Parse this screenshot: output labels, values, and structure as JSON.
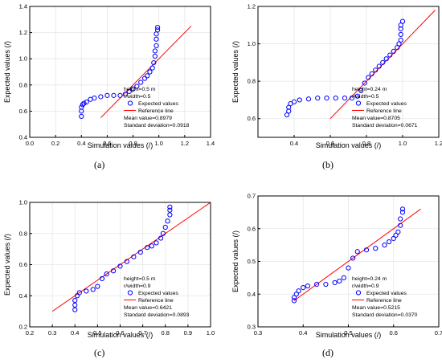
{
  "colors": {
    "points": "#0000ff",
    "reference": "#ff0000",
    "axis": "#000000",
    "grid": "#e6e6e6"
  },
  "captions": [
    "(a)",
    "(b)",
    "(c)",
    "(d)"
  ],
  "chart_data": [
    {
      "type": "scatter",
      "xlabel": "Simulation values (/)",
      "ylabel": "Expected values (/)",
      "xlim": [
        0.0,
        1.4
      ],
      "ylim": [
        0.4,
        1.4
      ],
      "xticks": [
        "0.0",
        "0.2",
        "0.4",
        "0.6",
        "0.8",
        "1.0",
        "1.2",
        "1.4"
      ],
      "yticks": [
        "0.4",
        "0.6",
        "0.8",
        "1.0",
        "1.2",
        "1.4"
      ],
      "grid": true,
      "legend_position": "bottom-right",
      "annotations": [
        "height=0.5 m",
        "r/width=0.5",
        "Mean value=0.8979",
        "Standard deviation=0.0918"
      ],
      "series": [
        {
          "name": "Expected values",
          "marker": "open-circle",
          "points": [
            [
              0.4,
              0.56
            ],
            [
              0.4,
              0.6
            ],
            [
              0.4,
              0.63
            ],
            [
              0.41,
              0.65
            ],
            [
              0.42,
              0.66
            ],
            [
              0.44,
              0.67
            ],
            [
              0.47,
              0.69
            ],
            [
              0.5,
              0.7
            ],
            [
              0.55,
              0.71
            ],
            [
              0.6,
              0.72
            ],
            [
              0.65,
              0.72
            ],
            [
              0.7,
              0.72
            ],
            [
              0.74,
              0.73
            ],
            [
              0.77,
              0.75
            ],
            [
              0.8,
              0.77
            ],
            [
              0.83,
              0.79
            ],
            [
              0.86,
              0.82
            ],
            [
              0.89,
              0.85
            ],
            [
              0.91,
              0.87
            ],
            [
              0.93,
              0.9
            ],
            [
              0.95,
              0.93
            ],
            [
              0.96,
              0.97
            ],
            [
              0.97,
              1.02
            ],
            [
              0.97,
              1.06
            ],
            [
              0.98,
              1.1
            ],
            [
              0.98,
              1.15
            ],
            [
              0.98,
              1.19
            ],
            [
              0.99,
              1.22
            ],
            [
              0.99,
              1.24
            ]
          ]
        },
        {
          "name": "Reference line",
          "line": [
            [
              0.55,
              0.55
            ],
            [
              1.25,
              1.25
            ]
          ]
        }
      ]
    },
    {
      "type": "scatter",
      "xlabel": "Simulation values (/)",
      "ylabel": "Expected values (/)",
      "xlim": [
        0.2,
        1.2
      ],
      "ylim": [
        0.5,
        1.2
      ],
      "xticks": [
        "0.4",
        "0.6",
        "0.8",
        "1.0",
        "1.2"
      ],
      "yticks": [
        "0.6",
        "0.8",
        "1.0",
        "1.2"
      ],
      "grid": true,
      "legend_position": "bottom-right",
      "annotations": [
        "height=0.24 m",
        "r/width=0.5",
        "Mean value=0.8705",
        "Standard deviation=0.0671"
      ],
      "series": [
        {
          "name": "Expected values",
          "marker": "open-circle",
          "points": [
            [
              0.36,
              0.62
            ],
            [
              0.37,
              0.64
            ],
            [
              0.37,
              0.66
            ],
            [
              0.38,
              0.68
            ],
            [
              0.4,
              0.69
            ],
            [
              0.43,
              0.7
            ],
            [
              0.48,
              0.705
            ],
            [
              0.53,
              0.71
            ],
            [
              0.58,
              0.71
            ],
            [
              0.63,
              0.71
            ],
            [
              0.68,
              0.71
            ],
            [
              0.72,
              0.71
            ],
            [
              0.75,
              0.72
            ],
            [
              0.77,
              0.75
            ],
            [
              0.79,
              0.79
            ],
            [
              0.81,
              0.82
            ],
            [
              0.83,
              0.84
            ],
            [
              0.85,
              0.86
            ],
            [
              0.87,
              0.88
            ],
            [
              0.89,
              0.9
            ],
            [
              0.91,
              0.92
            ],
            [
              0.93,
              0.94
            ],
            [
              0.95,
              0.96
            ],
            [
              0.97,
              0.98
            ],
            [
              0.98,
              1.0
            ],
            [
              0.99,
              1.02
            ],
            [
              0.99,
              1.05
            ],
            [
              0.99,
              1.08
            ],
            [
              0.99,
              1.1
            ],
            [
              1.0,
              1.12
            ]
          ]
        },
        {
          "name": "Reference line",
          "line": [
            [
              0.6,
              0.6
            ],
            [
              1.18,
              1.18
            ]
          ]
        }
      ]
    },
    {
      "type": "scatter",
      "xlabel": "Simulation values (/)",
      "ylabel": "Expected values (/)",
      "xlim": [
        0.2,
        1.0
      ],
      "ylim": [
        0.2,
        1.0
      ],
      "xticks": [
        "0.2",
        "0.3",
        "0.4",
        "0.5",
        "0.6",
        "0.7",
        "0.8",
        "0.9",
        "1.0"
      ],
      "yticks": [
        "0.2",
        "0.4",
        "0.6",
        "0.8",
        "1.0"
      ],
      "grid": true,
      "legend_position": "bottom-right",
      "annotations": [
        "height=0.5 m",
        "r/width=0.9",
        "Mean value=0.6421",
        "Standard deviation=0.0893"
      ],
      "series": [
        {
          "name": "Expected values",
          "marker": "open-circle",
          "points": [
            [
              0.4,
              0.31
            ],
            [
              0.4,
              0.34
            ],
            [
              0.4,
              0.37
            ],
            [
              0.41,
              0.4
            ],
            [
              0.42,
              0.42
            ],
            [
              0.45,
              0.43
            ],
            [
              0.48,
              0.44
            ],
            [
              0.5,
              0.46
            ],
            [
              0.52,
              0.51
            ],
            [
              0.54,
              0.54
            ],
            [
              0.57,
              0.56
            ],
            [
              0.6,
              0.59
            ],
            [
              0.63,
              0.62
            ],
            [
              0.66,
              0.65
            ],
            [
              0.69,
              0.68
            ],
            [
              0.72,
              0.71
            ],
            [
              0.74,
              0.72
            ],
            [
              0.76,
              0.74
            ],
            [
              0.78,
              0.77
            ],
            [
              0.79,
              0.8
            ],
            [
              0.8,
              0.84
            ],
            [
              0.81,
              0.88
            ],
            [
              0.82,
              0.92
            ],
            [
              0.82,
              0.95
            ],
            [
              0.82,
              0.97
            ]
          ]
        },
        {
          "name": "Reference line",
          "line": [
            [
              0.3,
              0.3
            ],
            [
              1.0,
              1.0
            ]
          ]
        }
      ]
    },
    {
      "type": "scatter",
      "xlabel": "Simulation values (/)",
      "ylabel": "Expected values (/)",
      "xlim": [
        0.3,
        0.7
      ],
      "ylim": [
        0.3,
        0.7
      ],
      "xticks": [
        "0.3",
        "0.4",
        "0.5",
        "0.6",
        "0.7"
      ],
      "yticks": [
        "0.3",
        "0.4",
        "0.5",
        "0.6",
        "0.7"
      ],
      "grid": true,
      "legend_position": "bottom-right",
      "annotations": [
        "height=0.24 m",
        "r/width=0.9",
        "Mean value=0.5215",
        "Standard deviation=0.0370"
      ],
      "series": [
        {
          "name": "Expected values",
          "marker": "open-circle",
          "points": [
            [
              0.38,
              0.38
            ],
            [
              0.38,
              0.39
            ],
            [
              0.385,
              0.4
            ],
            [
              0.39,
              0.41
            ],
            [
              0.4,
              0.42
            ],
            [
              0.41,
              0.425
            ],
            [
              0.43,
              0.43
            ],
            [
              0.45,
              0.43
            ],
            [
              0.47,
              0.435
            ],
            [
              0.48,
              0.44
            ],
            [
              0.49,
              0.45
            ],
            [
              0.5,
              0.48
            ],
            [
              0.51,
              0.51
            ],
            [
              0.52,
              0.53
            ],
            [
              0.54,
              0.535
            ],
            [
              0.56,
              0.54
            ],
            [
              0.58,
              0.55
            ],
            [
              0.59,
              0.56
            ],
            [
              0.6,
              0.57
            ],
            [
              0.605,
              0.58
            ],
            [
              0.61,
              0.59
            ],
            [
              0.615,
              0.61
            ],
            [
              0.615,
              0.63
            ],
            [
              0.62,
              0.65
            ],
            [
              0.62,
              0.66
            ]
          ]
        },
        {
          "name": "Reference line",
          "line": [
            [
              0.38,
              0.38
            ],
            [
              0.66,
              0.66
            ]
          ]
        }
      ]
    }
  ]
}
